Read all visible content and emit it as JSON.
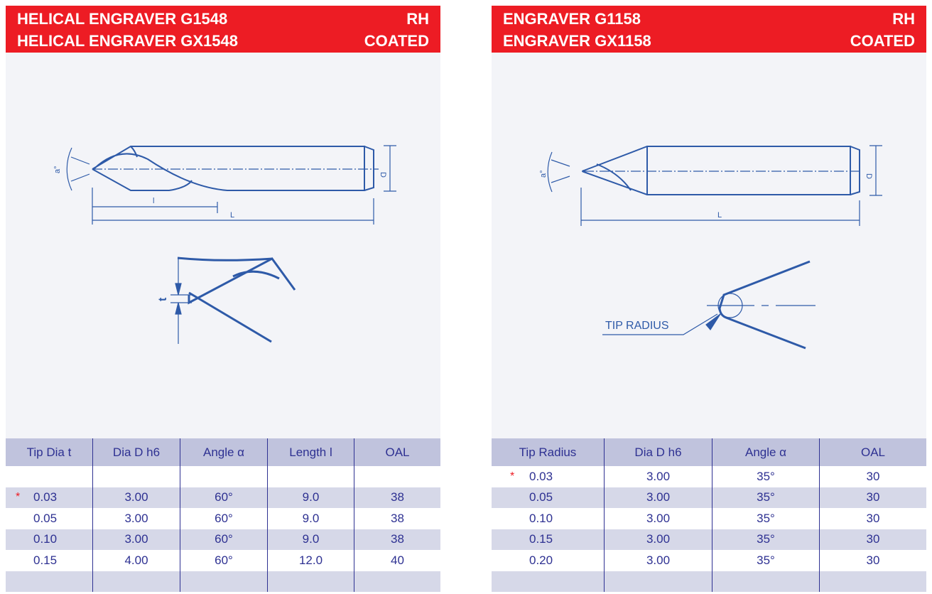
{
  "left": {
    "title1": "HELICAL ENGRAVER G1548",
    "tag1": "RH",
    "title2": "HELICAL ENGRAVER GX1548",
    "tag2": "COATED",
    "drawing_labels": {
      "angle": "a°",
      "diameter": "D",
      "length": "l",
      "overall": "L",
      "tip": "t"
    },
    "columns": [
      "Tip Dia t",
      "Dia D h6",
      "Angle α",
      "Length l",
      "OAL"
    ],
    "rows": [
      {
        "mark": "*",
        "cells": [
          "0.03",
          "3.00",
          "60°",
          "9.0",
          "38"
        ]
      },
      {
        "mark": "",
        "cells": [
          "0.05",
          "3.00",
          "60°",
          "9.0",
          "38"
        ]
      },
      {
        "mark": "",
        "cells": [
          "0.10",
          "3.00",
          "60°",
          "9.0",
          "38"
        ]
      },
      {
        "mark": "",
        "cells": [
          "0.15",
          "4.00",
          "60°",
          "12.0",
          "40"
        ]
      }
    ]
  },
  "right": {
    "title1": "ENGRAVER G1158",
    "tag1": "RH",
    "title2": "ENGRAVER GX1158",
    "tag2": "COATED",
    "drawing_labels": {
      "angle": "a°",
      "diameter": "D",
      "overall": "L",
      "tip_radius": "TIP RADIUS"
    },
    "columns": [
      "Tip Radius",
      "Dia D h6",
      "Angle α",
      "OAL"
    ],
    "rows": [
      {
        "mark": "*",
        "cells": [
          "0.03",
          "3.00",
          "35°",
          "30"
        ]
      },
      {
        "mark": "",
        "cells": [
          "0.05",
          "3.00",
          "35°",
          "30"
        ]
      },
      {
        "mark": "",
        "cells": [
          "0.10",
          "3.00",
          "35°",
          "30"
        ]
      },
      {
        "mark": "",
        "cells": [
          "0.15",
          "3.00",
          "35°",
          "30"
        ]
      },
      {
        "mark": "",
        "cells": [
          "0.20",
          "3.00",
          "35°",
          "30"
        ]
      }
    ]
  },
  "colors": {
    "header": "#ed1c24",
    "ink": "#2e3192",
    "table_header": "#c0c3dd",
    "row_shade": "#d6d8e8"
  }
}
